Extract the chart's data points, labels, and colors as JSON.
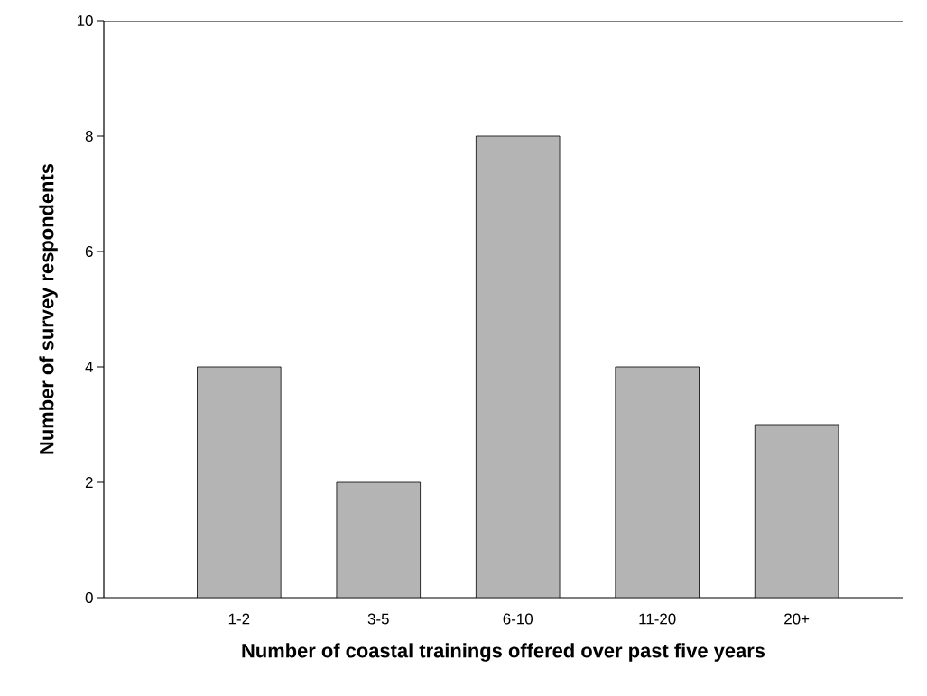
{
  "chart_data": {
    "type": "bar",
    "xlabel": "Number of coastal trainings offered over past five years",
    "ylabel": "Number of survey respondents",
    "categories": [
      "1-2",
      "3-5",
      "6-10",
      "11-20",
      "20+"
    ],
    "values": [
      4,
      2,
      8,
      4,
      3
    ],
    "color": "#b4b4b4",
    "ylim": [
      0,
      10
    ],
    "yticks": [
      0,
      2,
      4,
      6,
      8,
      10
    ]
  }
}
